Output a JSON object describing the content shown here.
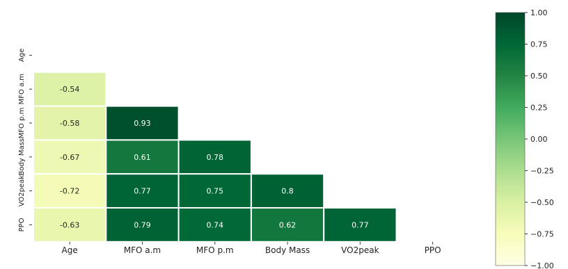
{
  "chart_data": {
    "type": "heatmap",
    "variables": [
      "Age",
      "MFO a.m",
      "MFO p.m",
      "Body Mass",
      "VO2peak",
      "PPO"
    ],
    "matrix": [
      [
        null,
        null,
        null,
        null,
        null,
        null
      ],
      [
        -0.54,
        null,
        null,
        null,
        null,
        null
      ],
      [
        -0.58,
        0.93,
        null,
        null,
        null,
        null
      ],
      [
        -0.67,
        0.61,
        0.78,
        null,
        null,
        null
      ],
      [
        -0.72,
        0.77,
        0.75,
        0.8,
        null,
        null
      ],
      [
        -0.63,
        0.79,
        0.74,
        0.62,
        0.77,
        null
      ]
    ],
    "cell_labels": [
      [
        "",
        "",
        "",
        "",
        "",
        ""
      ],
      [
        "-0.54",
        "",
        "",
        "",
        "",
        ""
      ],
      [
        "-0.58",
        "0.93",
        "",
        "",
        "",
        ""
      ],
      [
        "-0.67",
        "0.61",
        "0.78",
        "",
        "",
        ""
      ],
      [
        "-0.72",
        "0.77",
        "0.75",
        "0.8",
        "",
        ""
      ],
      [
        "-0.63",
        "0.79",
        "0.74",
        "0.62",
        "0.77",
        ""
      ]
    ],
    "mask": "upper-triangle-including-diagonal",
    "colormap": "YlGn",
    "colormap_stops": [
      "#ffffe5",
      "#f7fcb9",
      "#d9f0a3",
      "#addd8e",
      "#78c679",
      "#41ab5d",
      "#238443",
      "#006837",
      "#004529"
    ],
    "vmin": -1.0,
    "vmax": 1.0,
    "colorbar_ticks": [
      "1.00",
      "0.75",
      "0.50",
      "0.25",
      "0.00",
      "−0.25",
      "−0.50",
      "−0.75",
      "−1.00"
    ],
    "colorbar_tick_values": [
      1.0,
      0.75,
      0.5,
      0.25,
      0.0,
      -0.25,
      -0.5,
      -0.75,
      -1.0
    ],
    "title": "",
    "xlabel": "",
    "ylabel": ""
  }
}
